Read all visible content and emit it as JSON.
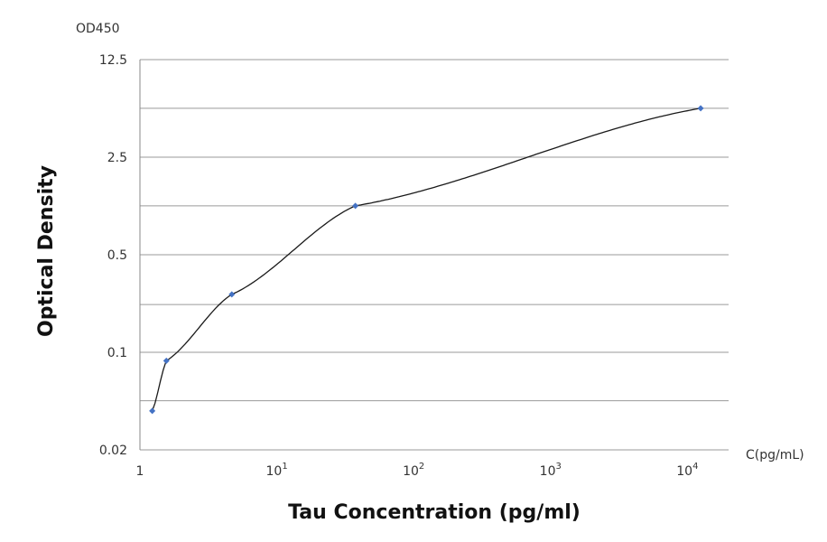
{
  "chart_data": {
    "type": "scatter",
    "ylabel": "Optical Density",
    "xlabel": "Tau Concentration (pg/ml)",
    "y_unit_label": "OD450",
    "x_unit_label": "C(pg/mL)",
    "x_scale": "log",
    "y_scale": "log",
    "xlim": [
      1,
      20000
    ],
    "ylim": [
      0.02,
      12.5
    ],
    "grid": "horizontal",
    "x_ticks": [
      {
        "value": 1,
        "base": "1",
        "exp": ""
      },
      {
        "value": 10,
        "base": "10",
        "exp": "1"
      },
      {
        "value": 100,
        "base": "10",
        "exp": "2"
      },
      {
        "value": 1000,
        "base": "10",
        "exp": "3"
      },
      {
        "value": 10000,
        "base": "10",
        "exp": "4"
      }
    ],
    "y_ticks": [
      {
        "value": 0.02,
        "label": "0.02"
      },
      {
        "value": 0.1,
        "label": "0.1"
      },
      {
        "value": 0.5,
        "label": "0.5"
      },
      {
        "value": 2.5,
        "label": "2.5"
      },
      {
        "value": 12.5,
        "label": "12.5"
      }
    ],
    "y_gridlines": [
      0.045,
      0.1,
      0.22,
      0.5,
      1.12,
      2.5,
      5.6,
      12.5
    ],
    "points": [
      {
        "x": 1.23,
        "y": 0.038
      },
      {
        "x": 1.56,
        "y": 0.087
      },
      {
        "x": 4.69,
        "y": 0.26
      },
      {
        "x": 37.5,
        "y": 1.12
      },
      {
        "x": 12500,
        "y": 5.6
      }
    ],
    "marker_color": "#4472c4",
    "curve_color": "#1a1a1a"
  }
}
